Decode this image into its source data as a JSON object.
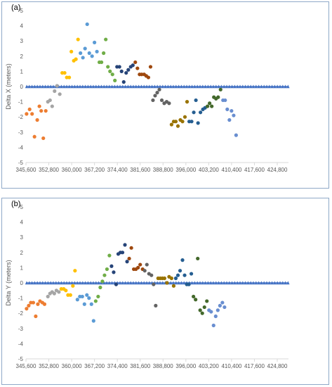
{
  "chart_data": [
    {
      "type": "scatter",
      "panel_label": "(a)",
      "ylabel": "Delta X (meters)",
      "xlabel": "",
      "ylim": [
        -5,
        5
      ],
      "yticks": [
        "5",
        "4",
        "3",
        "2",
        "1",
        "0",
        "-1",
        "-2",
        "-3",
        "-4",
        "-5"
      ],
      "xticks": [
        "345,600",
        "352,800",
        "360,000",
        "367,200",
        "374,400",
        "381,600",
        "388,800",
        "396,000",
        "403,200",
        "410,400",
        "417,600",
        "424,800"
      ],
      "xlim": [
        345600,
        431800
      ],
      "grid": false,
      "baseline": {
        "name": "",
        "color": "#4472c4",
        "value": 0,
        "marker": "triangle"
      },
      "series": [
        {
          "color": "#ed7d31",
          "points": [
            [
              345800,
              -1.8
            ],
            [
              346800,
              -1.5
            ],
            [
              347600,
              -1.8
            ],
            [
              348400,
              -3.3
            ],
            [
              349300,
              -2.2
            ],
            [
              350000,
              -1.3
            ],
            [
              350600,
              -1.6
            ],
            [
              351300,
              -3.4
            ],
            [
              352100,
              -1.6
            ]
          ]
        },
        {
          "color": "#a5a5a5",
          "points": [
            [
              352800,
              -1.0
            ],
            [
              353500,
              -0.9
            ],
            [
              354200,
              -1.3
            ],
            [
              355000,
              -0.3
            ],
            [
              355800,
              0.05
            ],
            [
              356700,
              -0.5
            ]
          ]
        },
        {
          "color": "#ffc000",
          "points": [
            [
              357500,
              0.9
            ],
            [
              358300,
              0.9
            ],
            [
              359000,
              0.6
            ],
            [
              359800,
              0.6
            ],
            [
              360500,
              2.3
            ],
            [
              361300,
              1.7
            ],
            [
              362000,
              1.8
            ],
            [
              362700,
              3.1
            ]
          ]
        },
        {
          "color": "#5b9bd5",
          "points": [
            [
              363500,
              2.2
            ],
            [
              364300,
              1.9
            ],
            [
              365000,
              2.5
            ],
            [
              365700,
              4.1
            ],
            [
              366400,
              2.2
            ],
            [
              367300,
              2.0
            ],
            [
              368100,
              2.9
            ],
            [
              368900,
              2.3
            ]
          ]
        },
        {
          "color": "#70ad47",
          "points": [
            [
              369700,
              1.6
            ],
            [
              370400,
              1.6
            ],
            [
              371100,
              2.2
            ],
            [
              371800,
              3.1
            ],
            [
              372500,
              1.3
            ],
            [
              373200,
              1.0
            ],
            [
              374000,
              0.8
            ],
            [
              374800,
              0.4
            ]
          ]
        },
        {
          "color": "#264478",
          "points": [
            [
              375500,
              1.3
            ],
            [
              376300,
              1.3
            ],
            [
              377000,
              1.0
            ],
            [
              377700,
              0.3
            ],
            [
              378500,
              0.9
            ],
            [
              379200,
              1.1
            ],
            [
              380000,
              1.3
            ],
            [
              380700,
              1.4
            ]
          ]
        },
        {
          "color": "#9e480e",
          "points": [
            [
              381500,
              1.6
            ],
            [
              382200,
              1.2
            ],
            [
              382900,
              0.8
            ],
            [
              383600,
              0.8
            ],
            [
              384400,
              0.8
            ],
            [
              385100,
              0.7
            ],
            [
              385800,
              0.6
            ],
            [
              386500,
              1.3
            ]
          ]
        },
        {
          "color": "#636363",
          "points": [
            [
              387300,
              -0.9
            ],
            [
              388000,
              -0.6
            ],
            [
              388700,
              -0.4
            ],
            [
              389400,
              -0.2
            ],
            [
              390200,
              -0.9
            ],
            [
              391000,
              -1.1
            ],
            [
              391800,
              -1.0
            ],
            [
              392600,
              -1.1
            ]
          ]
        },
        {
          "color": "#997300",
          "points": [
            [
              393400,
              -2.5
            ],
            [
              394100,
              -2.3
            ],
            [
              394800,
              -2.3
            ],
            [
              395500,
              -2.6
            ],
            [
              396300,
              -2.2
            ],
            [
              397000,
              -2.3
            ],
            [
              397800,
              -2.0
            ],
            [
              398500,
              -1.0
            ]
          ]
        },
        {
          "color": "#255e91",
          "points": [
            [
              399200,
              -2.3
            ],
            [
              400000,
              -2.3
            ],
            [
              400700,
              -1.7
            ],
            [
              401400,
              -0.9
            ],
            [
              402100,
              -2.4
            ],
            [
              402900,
              -1.7
            ],
            [
              403700,
              -1.5
            ],
            [
              404400,
              -1.4
            ]
          ]
        },
        {
          "color": "#43682b",
          "points": [
            [
              405200,
              -1.3
            ],
            [
              405900,
              -1.1
            ],
            [
              406600,
              -1.3
            ],
            [
              407300,
              -0.7
            ],
            [
              408000,
              -0.8
            ],
            [
              408700,
              -0.7
            ],
            [
              409500,
              -0.2
            ]
          ]
        },
        {
          "color": "#698ed0",
          "points": [
            [
              410300,
              -0.9
            ],
            [
              411000,
              -0.9
            ],
            [
              411700,
              -1.5
            ],
            [
              412400,
              -2.2
            ],
            [
              413100,
              -1.6
            ],
            [
              413800,
              -1.9
            ],
            [
              414600,
              -3.2
            ]
          ]
        }
      ]
    },
    {
      "type": "scatter",
      "panel_label": "(b)",
      "ylabel": "Delta Y (meters)",
      "xlabel": "",
      "ylim": [
        -5,
        5
      ],
      "yticks": [
        "5",
        "4",
        "3",
        "2",
        "1",
        "0",
        "-1",
        "-2",
        "-3",
        "-4",
        "-5"
      ],
      "xticks": [
        "345,600",
        "352,800",
        "360,000",
        "367,200",
        "374,400",
        "381,600",
        "388,800",
        "396,000",
        "403,200",
        "410,400",
        "417,600",
        "424,800"
      ],
      "xlim": [
        345600,
        431800
      ],
      "grid": false,
      "baseline": {
        "name": "",
        "color": "#4472c4",
        "value": 0,
        "marker": "triangle"
      },
      "series": [
        {
          "color": "#ed7d31",
          "points": [
            [
              345800,
              -1.7
            ],
            [
              346500,
              -1.5
            ],
            [
              347200,
              -1.3
            ],
            [
              348000,
              -1.3
            ],
            [
              348800,
              -2.2
            ],
            [
              349500,
              -1.4
            ],
            [
              350200,
              -1.2
            ],
            [
              351000,
              -1.3
            ],
            [
              351700,
              -1.4
            ]
          ]
        },
        {
          "color": "#a5a5a5",
          "points": [
            [
              352800,
              -0.9
            ],
            [
              353500,
              -0.7
            ],
            [
              354200,
              -0.6
            ],
            [
              354900,
              -0.7
            ],
            [
              355600,
              -0.5
            ],
            [
              356400,
              -0.6
            ]
          ]
        },
        {
          "color": "#ffc000",
          "points": [
            [
              357200,
              -0.4
            ],
            [
              358000,
              -0.4
            ],
            [
              358700,
              -0.5
            ],
            [
              359400,
              -0.8
            ],
            [
              360200,
              -0.8
            ],
            [
              361000,
              -0.2
            ],
            [
              361700,
              0.8
            ]
          ]
        },
        {
          "color": "#5b9bd5",
          "points": [
            [
              362500,
              -1.1
            ],
            [
              363300,
              -0.9
            ],
            [
              364100,
              -0.9
            ],
            [
              364800,
              -1.4
            ],
            [
              365600,
              -0.8
            ],
            [
              366300,
              -1.0
            ],
            [
              367100,
              -1.4
            ],
            [
              367800,
              -2.5
            ]
          ]
        },
        {
          "color": "#70ad47",
          "points": [
            [
              368500,
              -1.2
            ],
            [
              369300,
              -0.9
            ],
            [
              370000,
              -0.3
            ],
            [
              370700,
              0.1
            ],
            [
              371400,
              0.5
            ],
            [
              372200,
              0.9
            ],
            [
              373000,
              1.8
            ]
          ]
        },
        {
          "color": "#264478",
          "points": [
            [
              373700,
              1.1
            ],
            [
              374400,
              0.7
            ],
            [
              375200,
              -0.1
            ],
            [
              375900,
              1.9
            ],
            [
              376600,
              2.0
            ],
            [
              377300,
              2.0
            ],
            [
              378100,
              2.5
            ],
            [
              378800,
              1.4
            ]
          ]
        },
        {
          "color": "#9e480e",
          "points": [
            [
              379500,
              1.6
            ],
            [
              380200,
              2.3
            ],
            [
              381000,
              0.9
            ],
            [
              381700,
              0.9
            ],
            [
              382400,
              1.0
            ],
            [
              383100,
              1.2
            ],
            [
              383900,
              0.9
            ]
          ]
        },
        {
          "color": "#636363",
          "points": [
            [
              384600,
              0.8
            ],
            [
              385300,
              1.2
            ],
            [
              386000,
              0.6
            ],
            [
              386800,
              0.5
            ],
            [
              387500,
              -0.1
            ],
            [
              388200,
              -1.5
            ]
          ]
        },
        {
          "color": "#997300",
          "points": [
            [
              389000,
              0.3
            ],
            [
              389700,
              0.3
            ],
            [
              390400,
              0.3
            ],
            [
              391100,
              0.3
            ],
            [
              391900,
              0.0
            ],
            [
              392600,
              0.4
            ],
            [
              393400,
              0.3
            ],
            [
              394100,
              -0.2
            ]
          ]
        },
        {
          "color": "#255e91",
          "points": [
            [
              394800,
              0.3
            ],
            [
              395500,
              0.5
            ],
            [
              396200,
              0.8
            ],
            [
              397000,
              1.5
            ],
            [
              397700,
              0.5
            ],
            [
              398400,
              -0.1
            ],
            [
              399100,
              -0.1
            ],
            [
              399900,
              0.6
            ]
          ]
        },
        {
          "color": "#43682b",
          "points": [
            [
              400600,
              -0.9
            ],
            [
              401300,
              -1.1
            ],
            [
              402000,
              1.6
            ],
            [
              402800,
              -1.8
            ],
            [
              403500,
              -2.0
            ],
            [
              404200,
              -1.6
            ],
            [
              405000,
              -1.2
            ]
          ]
        },
        {
          "color": "#698ed0",
          "points": [
            [
              405700,
              -1.8
            ],
            [
              406400,
              -1.9
            ],
            [
              407200,
              -2.8
            ],
            [
              407900,
              -2.2
            ],
            [
              408600,
              -1.8
            ],
            [
              409300,
              -1.5
            ],
            [
              410100,
              -1.3
            ],
            [
              410800,
              -1.6
            ]
          ]
        }
      ]
    }
  ]
}
